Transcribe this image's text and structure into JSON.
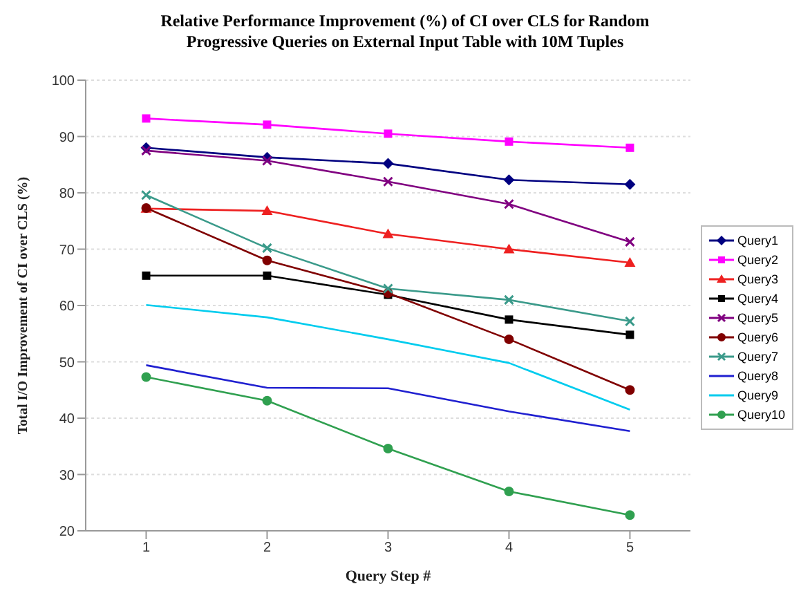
{
  "chart_data": {
    "type": "line",
    "title": "Relative Performance Improvement (%) of CI over CLS for Random Progressive Queries on External Input Table with 10M Tuples",
    "xlabel": "Query Step #",
    "ylabel": "Total I/O Improvement of CI over CLS (%)",
    "categories": [
      "1",
      "2",
      "3",
      "4",
      "5"
    ],
    "series": [
      {
        "name": "Query1",
        "color": "#000080",
        "marker": "diamond",
        "values": [
          88,
          86.3,
          85.2,
          82.3,
          81.5
        ]
      },
      {
        "name": "Query2",
        "color": "#ff00ff",
        "marker": "square",
        "values": [
          93.2,
          92.1,
          90.5,
          89.1,
          88
        ]
      },
      {
        "name": "Query3",
        "color": "#ee2020",
        "marker": "triangle",
        "values": [
          77.2,
          76.8,
          72.7,
          70,
          67.6
        ]
      },
      {
        "name": "Query4",
        "color": "#000000",
        "marker": "square",
        "values": [
          65.3,
          65.3,
          61.9,
          57.5,
          54.8
        ]
      },
      {
        "name": "Query5",
        "color": "#800080",
        "marker": "cross",
        "values": [
          87.5,
          85.7,
          82,
          78,
          71.3
        ]
      },
      {
        "name": "Query6",
        "color": "#800000",
        "marker": "circle",
        "values": [
          77.3,
          68,
          62.2,
          54,
          45
        ]
      },
      {
        "name": "Query7",
        "color": "#3a9a8a",
        "marker": "cross",
        "values": [
          79.6,
          70.2,
          63,
          61,
          57.2
        ]
      },
      {
        "name": "Query8",
        "color": "#2020d0",
        "marker": "none",
        "values": [
          49.4,
          45.4,
          45.3,
          41.2,
          37.7
        ]
      },
      {
        "name": "Query9",
        "color": "#00ccee",
        "marker": "none",
        "values": [
          60.1,
          57.9,
          54,
          49.8,
          41.5
        ]
      },
      {
        "name": "Query10",
        "color": "#30a050",
        "marker": "circle",
        "values": [
          47.3,
          43.1,
          34.6,
          27,
          22.8
        ]
      }
    ],
    "ylim": [
      20,
      100
    ],
    "yticks": [
      20,
      30,
      40,
      50,
      60,
      70,
      80,
      90,
      100
    ],
    "grid": "y",
    "legend": "right",
    "line_style": "solid"
  }
}
